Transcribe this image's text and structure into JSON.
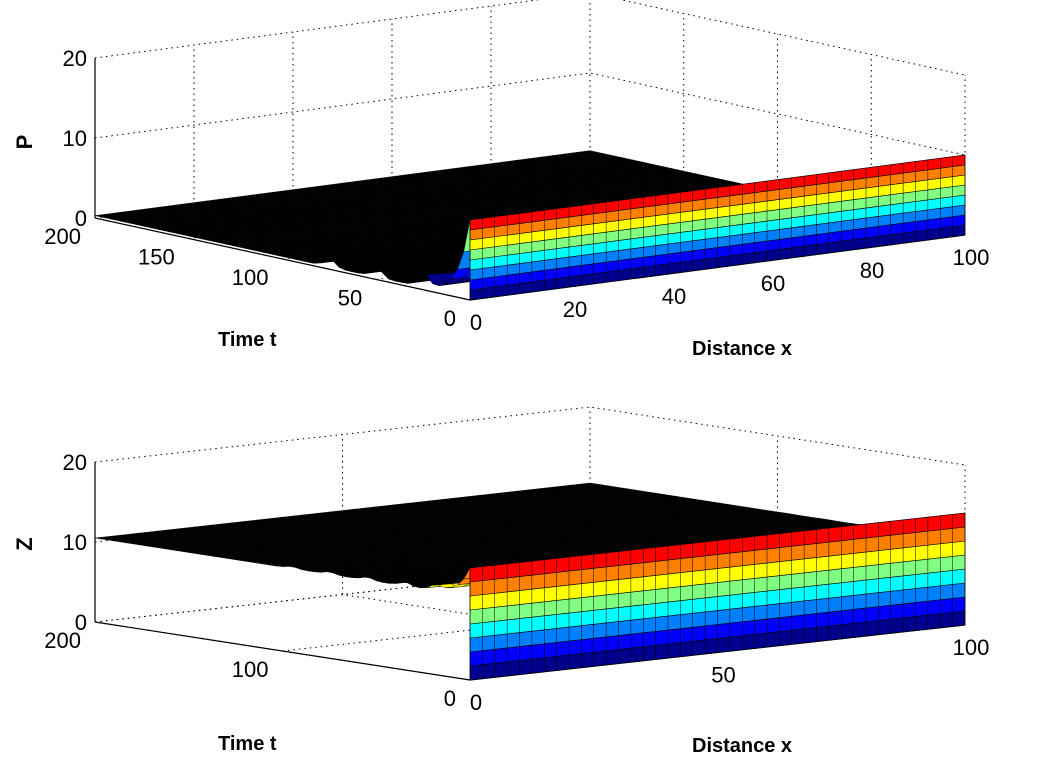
{
  "chart_data": [
    {
      "type": "surface",
      "zlabel": "P",
      "xlabel": "Distance x",
      "ylabel": "Time t",
      "xlim": [
        0,
        100
      ],
      "ylim": [
        0,
        200
      ],
      "zlim": [
        0,
        20
      ],
      "xticks": [
        "0",
        "20",
        "40",
        "60",
        "80",
        "100"
      ],
      "yticks": [
        "0",
        "50",
        "100",
        "150",
        "200"
      ],
      "zticks": [
        "0",
        "10",
        "20"
      ],
      "grid": true,
      "colormap": "jet",
      "profile_at_t0": {
        "plateau": 10,
        "front_x": 1
      },
      "t_ripples": [
        25,
        50,
        75
      ],
      "steady_value": 0.3
    },
    {
      "type": "surface",
      "zlabel": "Z",
      "xlabel": "Distance x",
      "ylabel": "Time t",
      "xlim": [
        0,
        100
      ],
      "ylim": [
        0,
        200
      ],
      "zlim": [
        0,
        20
      ],
      "xticks": [
        "0",
        "50",
        "100"
      ],
      "yticks": [
        "0",
        "100",
        "200"
      ],
      "zticks": [
        "0",
        "10",
        "20"
      ],
      "grid": true,
      "colormap": "jet",
      "profile_at_t0": {
        "plateau": 14,
        "front_x": 1
      },
      "t_ripples": [
        18,
        35,
        55,
        75,
        95
      ],
      "steady_value": 10.5
    }
  ],
  "colors": {
    "jet": [
      "#00008f",
      "#0000ff",
      "#0080ff",
      "#00ffff",
      "#80ff80",
      "#ffff00",
      "#ff8000",
      "#ff0000",
      "#800000"
    ],
    "dark": "#000000"
  }
}
